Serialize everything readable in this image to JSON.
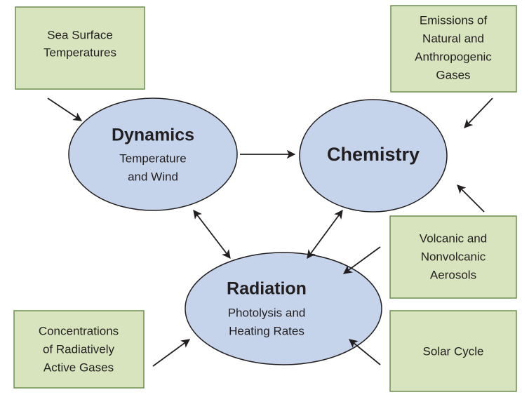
{
  "boxes": [
    {
      "lines": [
        "Sea Surface",
        "Temperatures"
      ]
    },
    {
      "lines": [
        "Emissions of",
        "Natural and",
        "Anthropogenic",
        "Gases"
      ]
    },
    {
      "lines": [
        "Volcanic and",
        "Nonvolcanic",
        "Aerosols"
      ]
    },
    {
      "lines": [
        "Concentrations",
        "of Radiatively",
        "Active Gases"
      ]
    },
    {
      "lines": [
        "Solar Cycle"
      ]
    }
  ],
  "processes": [
    {
      "title": "Dynamics",
      "subtitle": [
        "Temperature",
        "and Wind"
      ]
    },
    {
      "title": "Chemistry"
    },
    {
      "title": "Radiation",
      "subtitle": [
        "Photolysis and",
        "Heating Rates"
      ]
    }
  ]
}
